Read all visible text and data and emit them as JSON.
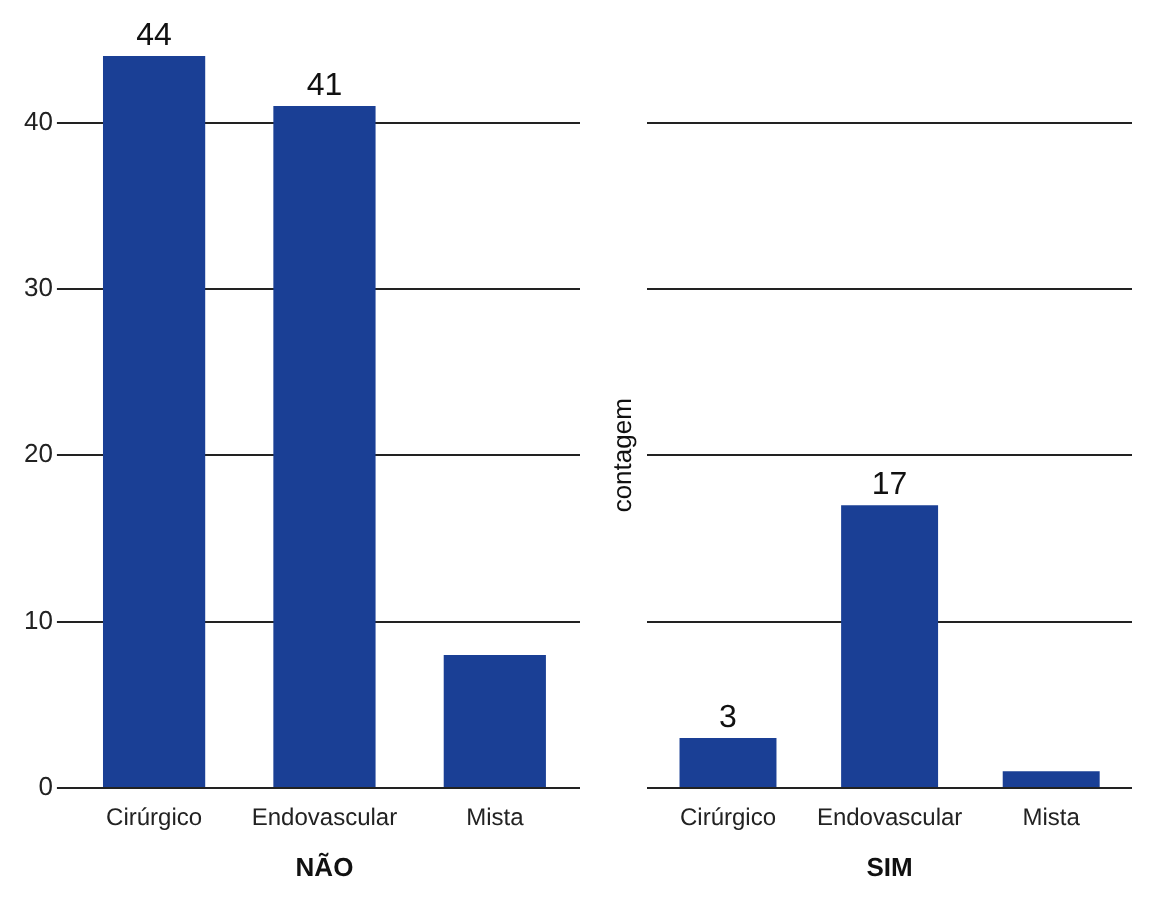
{
  "chart_data": [
    {
      "type": "bar",
      "xlabel": "NÃO",
      "categories": [
        "Cirúrgico",
        "Endovascular",
        "Mista"
      ],
      "values": [
        44,
        41,
        8
      ],
      "value_labels": [
        "44",
        "41",
        null
      ],
      "color": "#1a3f95",
      "ylim": [
        0,
        44
      ],
      "yticks": [
        0,
        10,
        20,
        30,
        40
      ],
      "grid": "y",
      "legend": false
    },
    {
      "type": "bar",
      "xlabel": "SIM",
      "ylabel": "contagem",
      "categories": [
        "Cirúrgico",
        "Endovascular",
        "Mista"
      ],
      "values": [
        3,
        17,
        1
      ],
      "value_labels": [
        "3",
        "17",
        null
      ],
      "color": "#1a3f95",
      "yticks": [
        0,
        10,
        20,
        30,
        40
      ],
      "grid": "y",
      "legend": false,
      "tick_labels": "x"
    }
  ]
}
